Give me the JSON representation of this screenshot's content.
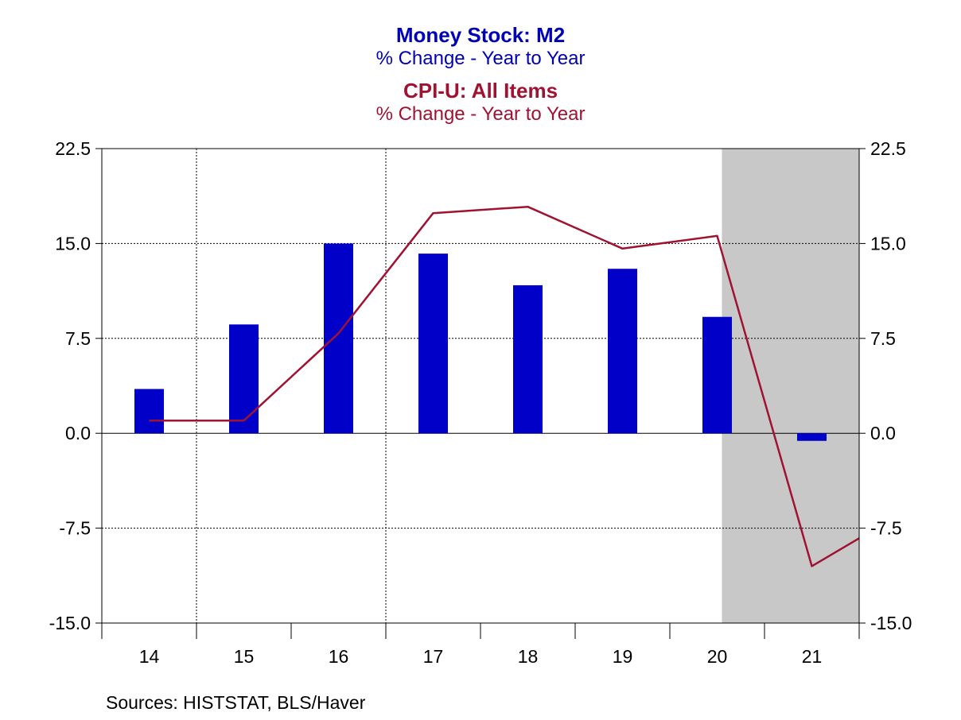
{
  "titles": {
    "m2_title": "Money Stock: M2",
    "m2_subtitle": "% Change - Year to Year",
    "cpi_title": "CPI-U: All Items",
    "cpi_subtitle": "% Change - Year to Year"
  },
  "source": "Sources:  HISTSTAT, BLS/Haver",
  "colors": {
    "m2": "#0000c8",
    "cpi": "#a01232",
    "m2_title": "#0000b4",
    "shade": "#c8c8c8"
  },
  "chart_data": {
    "type": "bar",
    "categories": [
      "14",
      "15",
      "16",
      "17",
      "18",
      "19",
      "20",
      "21"
    ],
    "yticks": [
      "22.5",
      "15.0",
      "7.5",
      "0.0",
      "-7.5",
      "-15.0"
    ],
    "ylim": [
      -15,
      22.5
    ],
    "xlim": [
      1913.5,
      1921.5
    ],
    "gridlines": true,
    "shaded_region": {
      "from": 1920.05,
      "to": 1921.55
    },
    "series": [
      {
        "type": "bar",
        "x": [
          1914,
          1915,
          1916,
          1917,
          1918,
          1919,
          1920,
          1921
        ],
        "values": [
          3.5,
          8.6,
          15.0,
          14.2,
          11.7,
          13.0,
          9.2,
          -0.6
        ]
      },
      {
        "type": "line",
        "x": [
          1914,
          1915,
          1916,
          1917,
          1918,
          1919,
          1920,
          1921,
          1921.5
        ],
        "values": [
          1.0,
          1.0,
          7.9,
          17.4,
          17.9,
          14.6,
          15.6,
          -10.5,
          -8.3
        ]
      }
    ]
  }
}
